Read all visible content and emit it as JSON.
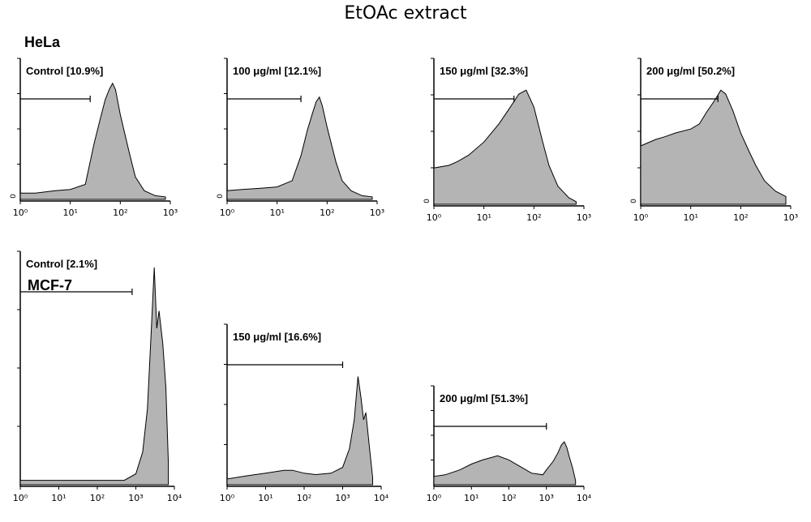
{
  "title": "EtOAc extract",
  "rows": [
    "HeLa",
    "MCF-7"
  ],
  "colors": {
    "fill": "#b4b4b4",
    "stroke": "#000000",
    "background": "#ffffff"
  },
  "chart_data": [
    {
      "type": "area",
      "row": "HeLa",
      "label": "Control [10.9%]",
      "xscale": "log",
      "xlim": [
        1,
        1000
      ],
      "xticks": [
        "10⁰",
        "10¹",
        "10²",
        "10³"
      ],
      "yticks": [
        "0"
      ],
      "gate": [
        1,
        25
      ],
      "gate_percent": 10.9,
      "x": [
        1,
        2,
        5,
        10,
        20,
        30,
        40,
        50,
        60,
        70,
        80,
        100,
        150,
        200,
        300,
        500,
        800
      ],
      "y": [
        0.05,
        0.05,
        0.07,
        0.08,
        0.12,
        0.45,
        0.65,
        0.8,
        0.88,
        0.93,
        0.88,
        0.68,
        0.38,
        0.18,
        0.07,
        0.03,
        0.02
      ]
    },
    {
      "type": "area",
      "row": "HeLa",
      "label": "100 μg/ml [12.1%]",
      "xscale": "log",
      "xlim": [
        1,
        1000
      ],
      "xticks": [
        "10⁰",
        "10¹",
        "10²",
        "10³"
      ],
      "yticks": [
        "0"
      ],
      "gate": [
        1,
        30
      ],
      "gate_percent": 12.1,
      "x": [
        1,
        2,
        5,
        10,
        20,
        30,
        40,
        50,
        60,
        70,
        80,
        100,
        150,
        200,
        300,
        500,
        800
      ],
      "y": [
        0.07,
        0.08,
        0.09,
        0.1,
        0.15,
        0.35,
        0.55,
        0.68,
        0.78,
        0.82,
        0.75,
        0.58,
        0.3,
        0.15,
        0.07,
        0.03,
        0.02
      ]
    },
    {
      "type": "area",
      "row": "HeLa",
      "label": "150 μg/ml [32.3%]",
      "xscale": "log",
      "xlim": [
        1,
        1000
      ],
      "xticks": [
        "10⁰",
        "10¹",
        "10²",
        "10³"
      ],
      "yticks": [
        "0"
      ],
      "gate": [
        1,
        40
      ],
      "gate_percent": 32.3,
      "x": [
        1,
        2,
        3,
        5,
        10,
        20,
        30,
        50,
        70,
        100,
        150,
        200,
        300,
        500,
        700
      ],
      "y": [
        0.28,
        0.3,
        0.33,
        0.38,
        0.48,
        0.62,
        0.72,
        0.85,
        0.88,
        0.75,
        0.48,
        0.3,
        0.14,
        0.05,
        0.02
      ]
    },
    {
      "type": "area",
      "row": "HeLa",
      "label": "200 μg/ml [50.2%]",
      "xscale": "log",
      "xlim": [
        1,
        1000
      ],
      "xticks": [
        "10⁰",
        "10¹",
        "10²",
        "10³"
      ],
      "yticks": [
        "0"
      ],
      "gate": [
        1,
        35
      ],
      "gate_percent": 50.2,
      "x": [
        1,
        2,
        3,
        5,
        10,
        15,
        20,
        30,
        40,
        50,
        70,
        100,
        150,
        200,
        300,
        500,
        800
      ],
      "y": [
        0.45,
        0.5,
        0.52,
        0.55,
        0.58,
        0.62,
        0.7,
        0.8,
        0.88,
        0.85,
        0.72,
        0.55,
        0.4,
        0.3,
        0.18,
        0.1,
        0.06
      ]
    },
    {
      "type": "area",
      "row": "MCF-7",
      "label": "Control [2.1%]",
      "xscale": "log",
      "xlim": [
        1,
        10000
      ],
      "xticks": [
        "10⁰",
        "10¹",
        "10²",
        "10³",
        "10⁴"
      ],
      "yticks": [],
      "gate": [
        1,
        800
      ],
      "gate_percent": 2.1,
      "x": [
        1,
        10,
        100,
        500,
        1000,
        1500,
        2000,
        2500,
        3000,
        3500,
        4000,
        5000,
        6000,
        7000
      ],
      "y": [
        0.02,
        0.02,
        0.02,
        0.02,
        0.05,
        0.15,
        0.35,
        0.7,
        1.0,
        0.72,
        0.8,
        0.65,
        0.45,
        0.1
      ]
    },
    {
      "type": "area",
      "row": "MCF-7",
      "label": "150 μg/ml [16.6%]",
      "xscale": "log",
      "xlim": [
        1,
        10000
      ],
      "xticks": [
        "10⁰",
        "10¹",
        "10²",
        "10³",
        "10⁴"
      ],
      "yticks": [],
      "gate": [
        1,
        1000
      ],
      "gate_percent": 16.6,
      "x": [
        1,
        3,
        10,
        30,
        50,
        100,
        200,
        500,
        1000,
        1500,
        2000,
        2500,
        3000,
        3500,
        4000,
        5000,
        6000
      ],
      "y": [
        0.04,
        0.06,
        0.08,
        0.1,
        0.1,
        0.08,
        0.07,
        0.08,
        0.12,
        0.25,
        0.45,
        0.75,
        0.6,
        0.45,
        0.5,
        0.25,
        0.05
      ]
    },
    {
      "type": "area",
      "row": "MCF-7",
      "label": "200 μg/ml [51.3%]",
      "xscale": "log",
      "xlim": [
        1,
        10000
      ],
      "xticks": [
        "10⁰",
        "10¹",
        "10²",
        "10³",
        "10⁴"
      ],
      "yticks": [],
      "gate": [
        1,
        1000
      ],
      "gate_percent": 51.3,
      "x": [
        1,
        2,
        5,
        10,
        20,
        50,
        100,
        200,
        400,
        800,
        1000,
        1500,
        2000,
        2500,
        3000,
        3500,
        4000,
        5000,
        6000
      ],
      "y": [
        0.1,
        0.12,
        0.18,
        0.25,
        0.3,
        0.35,
        0.3,
        0.22,
        0.14,
        0.12,
        0.18,
        0.28,
        0.38,
        0.48,
        0.52,
        0.45,
        0.35,
        0.2,
        0.05
      ]
    }
  ]
}
